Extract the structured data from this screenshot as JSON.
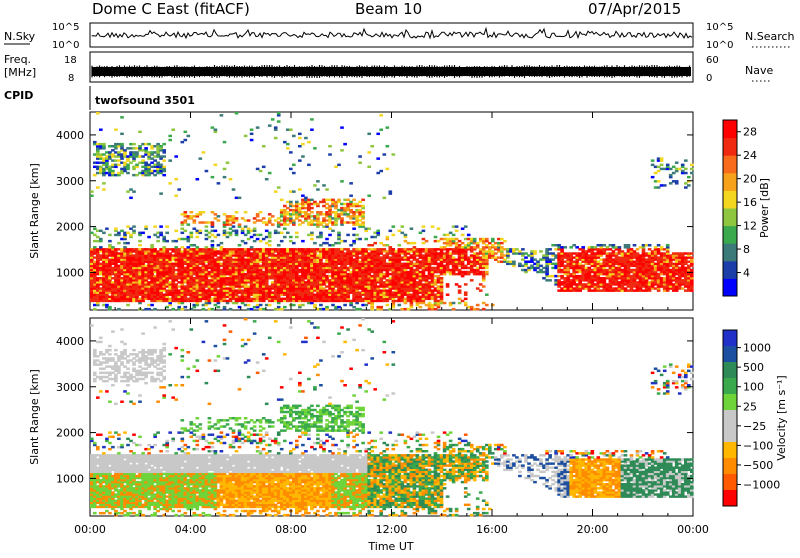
{
  "header": {
    "radar": "Dome C East (fitACF)",
    "beam": "Beam 10",
    "date": "07/Apr/2015"
  },
  "summary": {
    "nsky_label": "N.Sky",
    "nsearch_label": "N.Search",
    "freq_label_1": "Freq.",
    "freq_label_2": "[MHz]",
    "nave_label": "Nave",
    "cpid_label": "CPID",
    "cpid_name": "twofsound 3501",
    "nsky_ticks": [
      "10^5",
      "10^0"
    ],
    "nsearch_ticks": [
      "10^5",
      "10^0"
    ],
    "freq_ticks": [
      "18",
      "8"
    ],
    "nave_ticks": [
      "60",
      "0"
    ]
  },
  "colors": {
    "power": [
      "#0000ff",
      "#1c3ea8",
      "#3c7a7a",
      "#3aa84c",
      "#8ec63f",
      "#f2d61f",
      "#f7a21b",
      "#f76b1a",
      "#f02a10",
      "#ff0000"
    ],
    "velocity": [
      "#ff0000",
      "#ff5a00",
      "#ff8c00",
      "#ffb700",
      "#c8c8c8",
      "#c8c8c8",
      "#6fd43a",
      "#3aa84c",
      "#2e8b57",
      "#1c4fa0",
      "#2030c8"
    ],
    "frame": "#000000"
  },
  "chart_data": [
    {
      "type": "heatmap",
      "name": "power",
      "ylabel": "Slant Range [km]",
      "yticks": [
        "1000",
        "2000",
        "3000",
        "4000"
      ],
      "ylim": [
        180,
        4500
      ],
      "xlim": [
        0,
        24
      ],
      "xticks": [
        "00:00",
        "04:00",
        "08:00",
        "12:00",
        "16:00",
        "20:00",
        "00:00"
      ],
      "colorbar_label": "Power [dB]",
      "colorbar_ticks": [
        "4",
        "8",
        "12",
        "16",
        "20",
        "24",
        "28"
      ],
      "colorbar_range": [
        0,
        30
      ]
    },
    {
      "type": "heatmap",
      "name": "velocity",
      "ylabel": "Slant Range [km]",
      "yticks": [
        "1000",
        "2000",
        "3000",
        "4000"
      ],
      "ylim": [
        180,
        4500
      ],
      "xlim": [
        0,
        24
      ],
      "xticks": [
        "00:00",
        "04:00",
        "08:00",
        "12:00",
        "16:00",
        "20:00",
        "00:00"
      ],
      "xlabel": "Time UT",
      "colorbar_label": "Velocity [m s⁻¹]",
      "colorbar_ticks": [
        "1000",
        "500",
        "100",
        "25",
        "−25",
        "−100",
        "−500",
        "−1000"
      ]
    }
  ]
}
